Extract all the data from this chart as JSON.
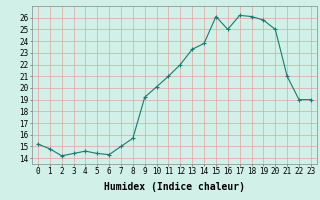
{
  "x": [
    0,
    1,
    2,
    3,
    4,
    5,
    6,
    7,
    8,
    9,
    10,
    11,
    12,
    13,
    14,
    15,
    16,
    17,
    18,
    19,
    20,
    21,
    22,
    23
  ],
  "y": [
    15.2,
    14.8,
    14.2,
    14.4,
    14.6,
    14.4,
    14.3,
    15.0,
    15.7,
    19.2,
    20.1,
    21.0,
    22.0,
    23.3,
    23.8,
    26.1,
    25.0,
    26.2,
    26.1,
    25.8,
    25.0,
    21.0,
    19.0,
    19.0
  ],
  "xlabel": "Humidex (Indice chaleur)",
  "ylim": [
    13.5,
    27
  ],
  "xlim": [
    -0.5,
    23.5
  ],
  "yticks": [
    14,
    15,
    16,
    17,
    18,
    19,
    20,
    21,
    22,
    23,
    24,
    25,
    26
  ],
  "xticks": [
    0,
    1,
    2,
    3,
    4,
    5,
    6,
    7,
    8,
    9,
    10,
    11,
    12,
    13,
    14,
    15,
    16,
    17,
    18,
    19,
    20,
    21,
    22,
    23
  ],
  "line_color": "#1a7a6e",
  "marker": "+",
  "bg_color": "#d0f0e8",
  "grid_color": "#e8a0a0",
  "tick_label_fontsize": 5.5,
  "xlabel_fontsize": 7.0
}
